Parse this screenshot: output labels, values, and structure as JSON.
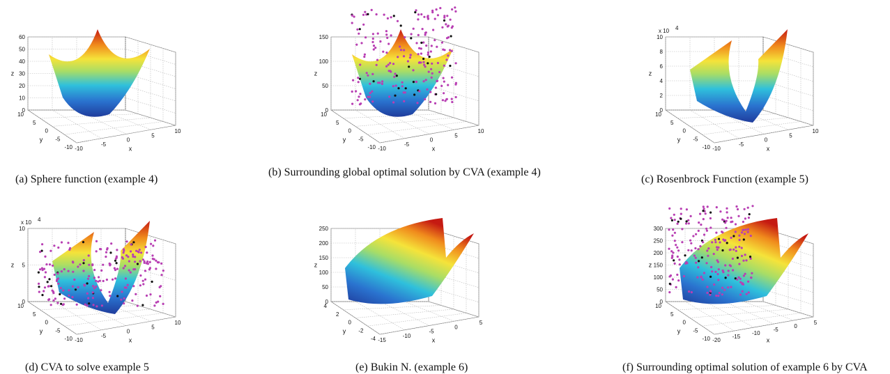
{
  "colors": {
    "surface_low": "#2040a0",
    "surface_mid_low": "#29b6d8",
    "surface_mid": "#b8e05a",
    "surface_mid_high": "#f6e23a",
    "surface_high": "#f07a1a",
    "surface_top": "#c81e14",
    "particles": "#b83fb3",
    "particles_dark": "#111111",
    "gridline": "#b8b8b8",
    "axis": "#555555"
  },
  "captions": {
    "a": "(a) Sphere function (example 4)",
    "b": "(b) Surrounding global optimal solution by CVA (example 4)",
    "c": "(c) Rosenbrock Function (example 5)",
    "d": "(d) CVA to solve example 5",
    "e": "(e) Bukin N. (example 6)",
    "f": "(f) Surrounding optimal solution of example 6 by CVA"
  },
  "chart_data": [
    {
      "id": "a",
      "type": "surface3d",
      "surface": "sphere",
      "particles": false,
      "xlabel": "x",
      "ylabel": "y",
      "zlabel": "z",
      "z_multiplier": "",
      "xticks": [
        "-10",
        "-5",
        "0",
        "5",
        "10"
      ],
      "yticks": [
        "10",
        "5",
        "0",
        "-5",
        "-10"
      ],
      "zticks": [
        "0",
        "10",
        "20",
        "30",
        "40",
        "50",
        "60"
      ],
      "xlim": [
        -10,
        10
      ],
      "ylim": [
        -10,
        10
      ],
      "zlim": [
        0,
        60
      ]
    },
    {
      "id": "b",
      "type": "surface3d",
      "surface": "sphere",
      "particles": true,
      "xlabel": "x",
      "ylabel": "y",
      "zlabel": "z",
      "z_multiplier": "",
      "xticks": [
        "-10",
        "-5",
        "0",
        "5",
        "10"
      ],
      "yticks": [
        "10",
        "5",
        "0",
        "-5",
        "-10"
      ],
      "zticks": [
        "0",
        "50",
        "100",
        "150"
      ],
      "xlim": [
        -10,
        10
      ],
      "ylim": [
        -10,
        10
      ],
      "zlim": [
        0,
        150
      ]
    },
    {
      "id": "c",
      "type": "surface3d",
      "surface": "rosenbrock",
      "particles": false,
      "xlabel": "x",
      "ylabel": "y",
      "zlabel": "z",
      "z_multiplier": "x 10",
      "z_multiplier_exp": "4",
      "xticks": [
        "-10",
        "-5",
        "0",
        "5",
        "10"
      ],
      "yticks": [
        "10",
        "5",
        "0",
        "-5",
        "-10"
      ],
      "zticks": [
        "0",
        "2",
        "4",
        "6",
        "8",
        "10"
      ],
      "xlim": [
        -10,
        10
      ],
      "ylim": [
        -10,
        10
      ],
      "zlim": [
        0,
        100000
      ]
    },
    {
      "id": "d",
      "type": "surface3d",
      "surface": "rosenbrock",
      "particles": true,
      "xlabel": "x",
      "ylabel": "y",
      "zlabel": "z",
      "z_multiplier": "x 10",
      "z_multiplier_exp": "4",
      "xticks": [
        "-10",
        "-5",
        "0",
        "5",
        "10"
      ],
      "yticks": [
        "10",
        "5",
        "0",
        "-5",
        "-10"
      ],
      "zticks": [
        "0",
        "5",
        "10"
      ],
      "xlim": [
        -10,
        10
      ],
      "ylim": [
        -10,
        10
      ],
      "zlim": [
        0,
        150000
      ]
    },
    {
      "id": "e",
      "type": "surface3d",
      "surface": "bukin",
      "particles": false,
      "xlabel": "x",
      "ylabel": "y",
      "zlabel": "z",
      "z_multiplier": "",
      "xticks": [
        "-15",
        "-10",
        "-5",
        "0",
        "5"
      ],
      "yticks": [
        "4",
        "2",
        "0",
        "-2",
        "-4"
      ],
      "zticks": [
        "0",
        "50",
        "100",
        "150",
        "200",
        "250"
      ],
      "xlim": [
        -15,
        5
      ],
      "ylim": [
        -4,
        4
      ],
      "zlim": [
        0,
        250
      ]
    },
    {
      "id": "f",
      "type": "surface3d",
      "surface": "bukin",
      "particles": true,
      "xlabel": "x",
      "ylabel": "y",
      "zlabel": "z",
      "z_multiplier": "",
      "xticks": [
        "-20",
        "-15",
        "-10",
        "-5",
        "0",
        "5"
      ],
      "yticks": [
        "10",
        "5",
        "0",
        "-5",
        "-10"
      ],
      "zticks": [
        "0",
        "50",
        "100",
        "150",
        "200",
        "250",
        "300"
      ],
      "xlim": [
        -20,
        5
      ],
      "ylim": [
        -10,
        10
      ],
      "zlim": [
        0,
        300
      ]
    }
  ]
}
